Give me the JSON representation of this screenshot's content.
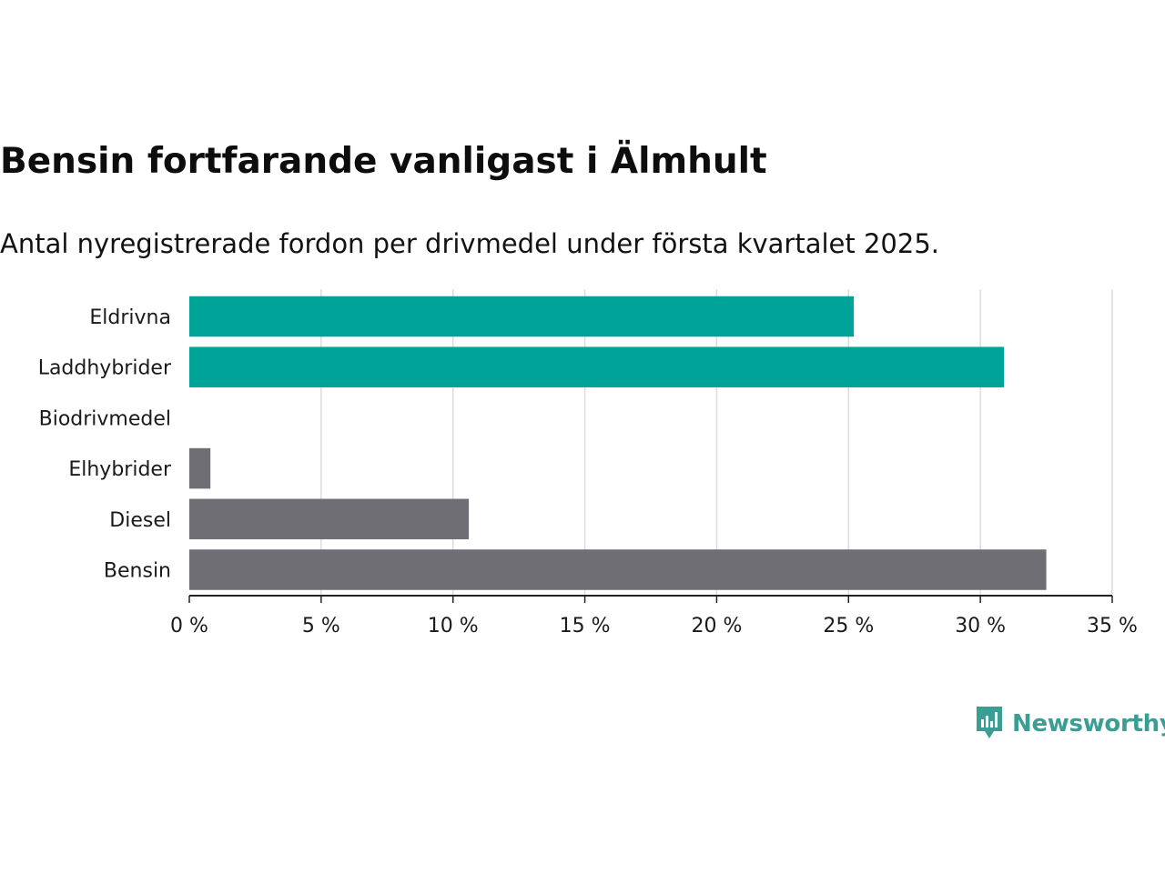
{
  "title": "Bensin fortfarande vanligast i Älmhult",
  "subtitle": "Antal nyregistrerade fordon per drivmedel under första kvartalet 2025.",
  "brand": {
    "name": "Newsworthy",
    "color": "#3a9e95",
    "icon": "newsworthy-chart-logo-icon"
  },
  "chart_data": {
    "type": "bar",
    "orientation": "horizontal",
    "categories": [
      "Eldrivna",
      "Laddhybrider",
      "Biodrivmedel",
      "Elhybrider",
      "Diesel",
      "Bensin"
    ],
    "values": [
      25.2,
      30.9,
      0,
      0.8,
      10.6,
      32.5
    ],
    "colors": [
      "#00a398",
      "#00a398",
      "#6f6e75",
      "#6f6e75",
      "#6f6e75",
      "#6f6e75"
    ],
    "xlim": [
      0,
      35
    ],
    "xticks": [
      0,
      5,
      10,
      15,
      20,
      25,
      30,
      35
    ],
    "xtick_labels": [
      "0 %",
      "5 %",
      "10 %",
      "15 %",
      "20 %",
      "25 %",
      "30 %",
      "35 %"
    ],
    "grid": true,
    "gridline_color": "#dcdcdc",
    "axis_color": "#222222",
    "xlabel": "",
    "ylabel": "",
    "legend": "none"
  }
}
